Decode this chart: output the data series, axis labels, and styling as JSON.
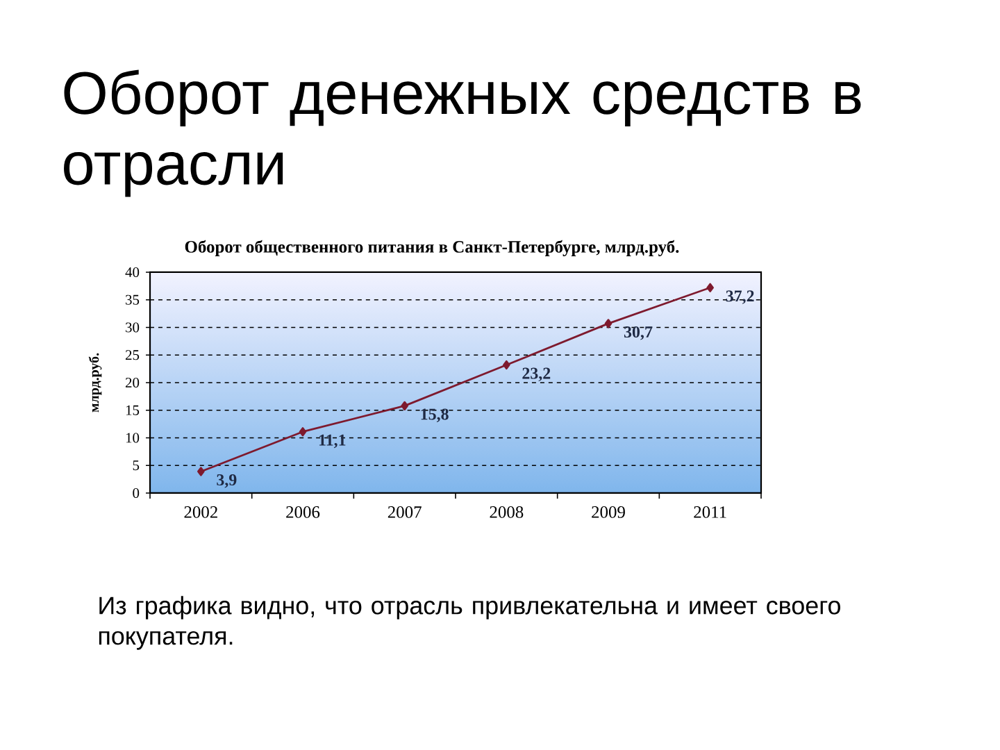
{
  "chart_data": {
    "type": "line",
    "title": "Оборот денежных средств в отрасли",
    "subtitle": "Оборот общественного питания в Санкт-Петербурге, млрд.руб.",
    "ylabel": "млрд.руб.",
    "categories": [
      "2002",
      "2006",
      "2007",
      "2008",
      "2009",
      "2011"
    ],
    "series": [
      {
        "color": "#7e1a2e",
        "values": [
          3.9,
          11.1,
          15.8,
          23.2,
          30.7,
          37.2
        ],
        "value_labels": [
          "3,9",
          "11,1",
          "15,8",
          "23,2",
          "30,7",
          "37,2"
        ]
      }
    ],
    "ylim": [
      0,
      40
    ],
    "yticks": [
      0,
      5,
      10,
      15,
      20,
      25,
      30,
      35,
      40
    ],
    "grid": "y",
    "marker": "diamond",
    "line_style": "solid",
    "annotations": [
      "Из графика видно, что отрасль привлекательна и имеет своего покупателя."
    ]
  }
}
